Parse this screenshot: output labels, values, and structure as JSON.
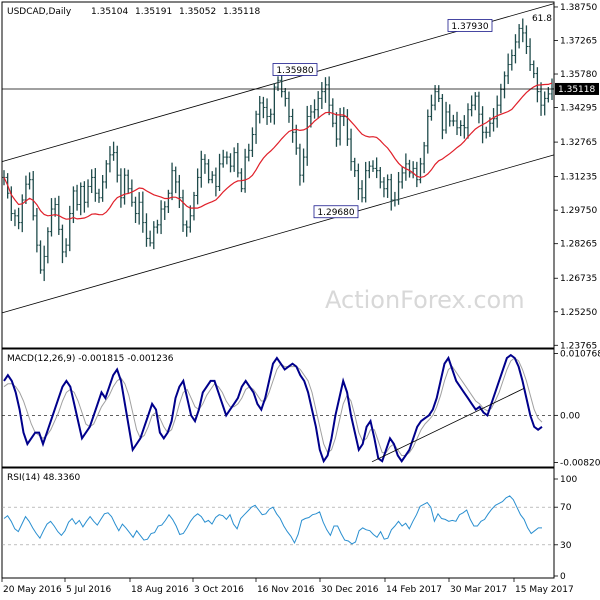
{
  "colors": {
    "price_bars": "#1f4b4b",
    "ma_line": "#e0202a",
    "trend_lines": "#000000",
    "macd_line": "#00008b",
    "signal_line": "#a0a0a0",
    "rsi_line": "#2a8fd0",
    "current_price_line": "#000000",
    "frame": "#000000"
  },
  "chart_data": [
    {
      "type": "bar",
      "title": "USDCAD,Daily",
      "header": {
        "symbol": "USDCAD,Daily",
        "ohlc": [
          "1.35104",
          "1.35191",
          "1.35052",
          "1.35118"
        ]
      },
      "x_tick_labels": [
        "20 May 2016",
        "5 Jul 2016",
        "18 Aug 2016",
        "3 Oct 2016",
        "16 Nov 2016",
        "30 Dec 2016",
        "14 Feb 2017",
        "30 Mar 2017",
        "15 May 2017"
      ],
      "y_tick_labels": [
        "1.38750",
        "1.37265",
        "1.35780",
        "1.34295",
        "1.32765",
        "1.31235",
        "1.29750",
        "1.28265",
        "1.26735",
        "1.25250",
        "1.23765"
      ],
      "ylim": [
        1.23765,
        1.3875
      ],
      "current_price": "1.35118",
      "fib_label": "61.8",
      "annotations": [
        {
          "label": "1.35980",
          "value": 1.3598
        },
        {
          "label": "1.29680",
          "value": 1.2968
        },
        {
          "label": "1.37930",
          "value": 1.3793
        }
      ],
      "channel_lines": [
        {
          "name": "upper",
          "points": [
            [
              "2016-05-20",
              1.319
            ],
            [
              "2017-05-26",
              1.389
            ]
          ]
        },
        {
          "name": "lower",
          "points": [
            [
              "2016-05-20",
              1.252
            ],
            [
              "2017-05-26",
              1.322
            ]
          ]
        }
      ],
      "closes": [
        1.312,
        1.305,
        1.296,
        1.295,
        1.292,
        1.302,
        1.309,
        1.311,
        1.295,
        1.282,
        1.271,
        1.277,
        1.288,
        1.298,
        1.3,
        1.289,
        1.279,
        1.282,
        1.296,
        1.306,
        1.3,
        1.308,
        1.301,
        1.308,
        1.312,
        1.305,
        1.303,
        1.31,
        1.318,
        1.322,
        1.323,
        1.313,
        1.303,
        1.313,
        1.307,
        1.301,
        1.296,
        1.301,
        1.292,
        1.285,
        1.283,
        1.29,
        1.291,
        1.298,
        1.299,
        1.305,
        1.315,
        1.31,
        1.303,
        1.291,
        1.29,
        1.295,
        1.304,
        1.312,
        1.32,
        1.318,
        1.311,
        1.313,
        1.308,
        1.318,
        1.321,
        1.321,
        1.317,
        1.323,
        1.314,
        1.307,
        1.321,
        1.324,
        1.331,
        1.34,
        1.345,
        1.343,
        1.339,
        1.34,
        1.352,
        1.355,
        1.35,
        1.347,
        1.339,
        1.332,
        1.325,
        1.313,
        1.321,
        1.339,
        1.341,
        1.342,
        1.347,
        1.35,
        1.353,
        1.344,
        1.336,
        1.329,
        1.339,
        1.339,
        1.329,
        1.319,
        1.315,
        1.307,
        1.303,
        1.315,
        1.317,
        1.316,
        1.315,
        1.31,
        1.307,
        1.311,
        1.302,
        1.302,
        1.31,
        1.314,
        1.318,
        1.314,
        1.316,
        1.311,
        1.318,
        1.326,
        1.339,
        1.344,
        1.35,
        1.347,
        1.333,
        1.341,
        1.337,
        1.337,
        1.334,
        1.335,
        1.334,
        1.342,
        1.344,
        1.348,
        1.34,
        1.332,
        1.332,
        1.336,
        1.338,
        1.344,
        1.351,
        1.357,
        1.362,
        1.366,
        1.372,
        1.378,
        1.376,
        1.37,
        1.362,
        1.358,
        1.35,
        1.344,
        1.347,
        1.349,
        1.3512
      ]
    },
    {
      "type": "line",
      "title": "MACD(12,26,9) -0.001815 -0.001236",
      "header": {
        "name": "MACD(12,26,9)",
        "values": [
          "-0.001815",
          "-0.001236"
        ]
      },
      "y_tick_labels": [
        "0.010768",
        "0.00",
        "-0.008203"
      ],
      "ylim": [
        -0.008203,
        0.010768
      ],
      "series": [
        {
          "values": [
            0.006,
            0.007,
            0.006,
            0.004,
            0.001,
            -0.003,
            -0.005,
            -0.004,
            -0.003,
            -0.003,
            -0.005,
            -0.003,
            -0.001,
            0.001,
            0.003,
            0.005,
            0.006,
            0.005,
            0.002,
            -0.001,
            -0.004,
            -0.003,
            -0.002,
            0.0,
            0.002,
            0.004,
            0.003,
            0.005,
            0.007,
            0.008,
            0.006,
            0.002,
            -0.002,
            -0.006,
            -0.005,
            -0.004,
            -0.002,
            0.0,
            0.002,
            0.001,
            -0.003,
            -0.004,
            -0.003,
            -0.001,
            0.003,
            0.005,
            0.006,
            0.003,
            0.0,
            -0.001,
            0.001,
            0.004,
            0.005,
            0.006,
            0.006,
            0.004,
            0.002,
            0.0,
            0.001,
            0.002,
            0.003,
            0.005,
            0.006,
            0.005,
            0.004,
            0.002,
            0.001,
            0.003,
            0.006,
            0.009,
            0.01,
            0.009,
            0.008,
            0.0085,
            0.009,
            0.0085,
            0.007,
            0.006,
            0.004,
            0.001,
            -0.002,
            -0.006,
            -0.008,
            -0.007,
            -0.004,
            0.0,
            0.003,
            0.006,
            0.004,
            0.0,
            -0.003,
            -0.006,
            -0.005,
            -0.002,
            -0.001,
            -0.004,
            -0.0075,
            -0.008,
            -0.006,
            -0.004,
            -0.005,
            -0.007,
            -0.008,
            -0.007,
            -0.006,
            -0.004,
            -0.002,
            -0.001,
            -0.0005,
            0.0,
            0.001,
            0.003,
            0.006,
            0.009,
            0.01,
            0.008,
            0.006,
            0.005,
            0.004,
            0.003,
            0.002,
            0.001,
            0.0015,
            0.0005,
            0.0,
            0.002,
            0.004,
            0.006,
            0.008,
            0.01,
            0.0105,
            0.01,
            0.0085,
            0.006,
            0.003,
            0.0,
            -0.002,
            -0.0025,
            -0.002
          ]
        },
        {
          "values": [
            0.005,
            0.0055,
            0.0055,
            0.005,
            0.004,
            0.0025,
            0.0005,
            -0.0015,
            -0.003,
            -0.0035,
            -0.004,
            -0.0035,
            -0.0025,
            -0.001,
            0.0005,
            0.0025,
            0.004,
            0.0045,
            0.004,
            0.0025,
            0.0005,
            -0.0015,
            -0.002,
            -0.0015,
            0.0,
            0.0015,
            0.0025,
            0.0035,
            0.005,
            0.006,
            0.0065,
            0.0055,
            0.0035,
            0.0005,
            -0.0025,
            -0.004,
            -0.0035,
            -0.002,
            0.0,
            0.0005,
            -0.0005,
            -0.002,
            -0.003,
            -0.0025,
            -0.0005,
            0.002,
            0.004,
            0.0045,
            0.003,
            0.0015,
            0.001,
            0.002,
            0.0035,
            0.0045,
            0.0055,
            0.005,
            0.004,
            0.0025,
            0.0015,
            0.0015,
            0.002,
            0.003,
            0.0045,
            0.005,
            0.0045,
            0.0035,
            0.0025,
            0.0025,
            0.004,
            0.006,
            0.008,
            0.009,
            0.0085,
            0.0085,
            0.0085,
            0.0085,
            0.008,
            0.007,
            0.006,
            0.004,
            0.001,
            -0.002,
            -0.005,
            -0.0065,
            -0.006,
            -0.004,
            -0.001,
            0.002,
            0.0035,
            0.0025,
            0.0,
            -0.003,
            -0.0045,
            -0.004,
            -0.0025,
            -0.0025,
            -0.0045,
            -0.0065,
            -0.0065,
            -0.0055,
            -0.005,
            -0.006,
            -0.007,
            -0.007,
            -0.0065,
            -0.0055,
            -0.004,
            -0.0025,
            -0.0015,
            -0.0008,
            0.0,
            0.0015,
            0.0035,
            0.006,
            0.008,
            0.0085,
            0.0075,
            0.0065,
            0.0055,
            0.0045,
            0.0035,
            0.0025,
            0.002,
            0.0012,
            0.0008,
            0.0012,
            0.0025,
            0.004,
            0.006,
            0.008,
            0.0095,
            0.01,
            0.0095,
            0.008,
            0.006,
            0.0035,
            0.001,
            -0.0005,
            -0.0012
          ]
        }
      ],
      "zero_line": 0,
      "trend_line": [
        [
          "2016-12-29",
          -0.0081
        ],
        [
          "2017-05-12",
          0.0047
        ]
      ]
    },
    {
      "type": "line",
      "title": "RSI(14) 48.3360",
      "header": {
        "name": "RSI(14)",
        "value": "48.3360"
      },
      "y_tick_labels": [
        "100",
        "70",
        "30",
        "0"
      ],
      "ylim": [
        0,
        100
      ],
      "levels": [
        70,
        30
      ],
      "series": [
        {
          "values": [
            58,
            61,
            55,
            47,
            44,
            52,
            60,
            55,
            48,
            42,
            37,
            45,
            52,
            55,
            50,
            44,
            40,
            45,
            54,
            58,
            52,
            56,
            49,
            55,
            60,
            55,
            51,
            57,
            63,
            64,
            60,
            52,
            45,
            52,
            48,
            43,
            38,
            45,
            40,
            35,
            36,
            42,
            43,
            50,
            51,
            56,
            62,
            57,
            50,
            41,
            42,
            48,
            55,
            60,
            63,
            60,
            54,
            56,
            52,
            59,
            62,
            61,
            57,
            62,
            52,
            47,
            58,
            62,
            66,
            70,
            72,
            67,
            62,
            63,
            68,
            70,
            63,
            58,
            50,
            44,
            39,
            32,
            41,
            56,
            58,
            59,
            62,
            63,
            65,
            54,
            46,
            40,
            50,
            50,
            42,
            35,
            34,
            31,
            33,
            45,
            48,
            46,
            45,
            41,
            38,
            44,
            36,
            37,
            46,
            50,
            55,
            50,
            53,
            47,
            55,
            62,
            71,
            73,
            75,
            70,
            55,
            63,
            58,
            57,
            55,
            56,
            55,
            62,
            64,
            67,
            57,
            50,
            50,
            55,
            57,
            63,
            68,
            72,
            74,
            76,
            80,
            82,
            78,
            70,
            62,
            57,
            48,
            42,
            45,
            48,
            48
          ]
        }
      ]
    }
  ],
  "watermark": "ActionForex.com"
}
